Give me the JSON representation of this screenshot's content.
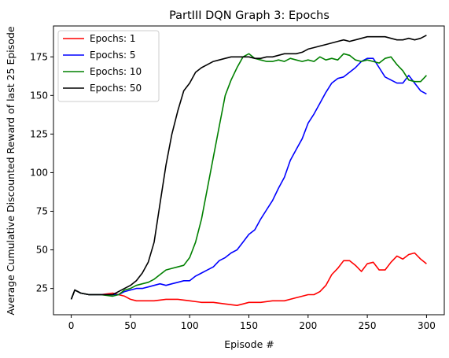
{
  "chart_data": {
    "type": "line",
    "title": "PartIII DQN Graph 3: Epochs",
    "xlabel": "Episode #",
    "ylabel": "Average Cumulative Discounted Reward of last 25 Episode",
    "xlim": [
      -15,
      315
    ],
    "ylim": [
      8,
      195
    ],
    "xticks": [
      0,
      50,
      100,
      150,
      200,
      250,
      300
    ],
    "yticks": [
      25,
      50,
      75,
      100,
      125,
      150,
      175
    ],
    "grid": false,
    "legend_position": "upper-left",
    "series": [
      {
        "name": "Epochs: 1",
        "color": "#ff0000",
        "x": [
          0,
          3,
          8,
          15,
          25,
          35,
          40,
          45,
          50,
          55,
          60,
          70,
          80,
          90,
          100,
          110,
          120,
          130,
          140,
          145,
          150,
          160,
          170,
          180,
          190,
          200,
          205,
          210,
          215,
          220,
          225,
          230,
          235,
          240,
          245,
          250,
          255,
          260,
          265,
          270,
          275,
          280,
          285,
          290,
          295,
          300
        ],
        "y": [
          18,
          24,
          22,
          21,
          21,
          22,
          21,
          20,
          18,
          17,
          17,
          17,
          18,
          18,
          17,
          16,
          16,
          15,
          14,
          15,
          16,
          16,
          17,
          17,
          19,
          21,
          21,
          23,
          27,
          34,
          38,
          43,
          43,
          40,
          36,
          41,
          42,
          37,
          37,
          42,
          46,
          44,
          47,
          48,
          44,
          41
        ]
      },
      {
        "name": "Epochs: 5",
        "color": "#0000ff",
        "x": [
          0,
          3,
          8,
          15,
          25,
          35,
          40,
          45,
          50,
          55,
          60,
          65,
          70,
          75,
          80,
          85,
          90,
          95,
          100,
          105,
          110,
          115,
          120,
          125,
          130,
          135,
          140,
          145,
          150,
          155,
          160,
          165,
          170,
          175,
          180,
          185,
          190,
          195,
          200,
          205,
          210,
          215,
          220,
          225,
          230,
          235,
          240,
          245,
          250,
          255,
          260,
          265,
          270,
          275,
          280,
          285,
          290,
          295,
          300
        ],
        "y": [
          18,
          24,
          22,
          21,
          21,
          21,
          21,
          23,
          24,
          25,
          25,
          26,
          27,
          28,
          27,
          28,
          29,
          30,
          30,
          33,
          35,
          37,
          39,
          43,
          45,
          48,
          50,
          55,
          60,
          63,
          70,
          76,
          82,
          90,
          97,
          108,
          115,
          122,
          132,
          138,
          145,
          152,
          158,
          161,
          162,
          165,
          168,
          172,
          174,
          174,
          168,
          162,
          160,
          158,
          158,
          163,
          158,
          153,
          151
        ]
      },
      {
        "name": "Epochs: 10",
        "color": "#008000",
        "x": [
          0,
          3,
          8,
          15,
          25,
          35,
          40,
          45,
          50,
          55,
          60,
          65,
          70,
          75,
          80,
          85,
          90,
          95,
          100,
          105,
          110,
          115,
          120,
          125,
          130,
          135,
          140,
          145,
          150,
          155,
          160,
          165,
          170,
          175,
          180,
          185,
          190,
          195,
          200,
          205,
          210,
          215,
          220,
          225,
          230,
          235,
          240,
          245,
          250,
          255,
          260,
          265,
          270,
          275,
          280,
          285,
          290,
          295,
          300
        ],
        "y": [
          18,
          24,
          22,
          21,
          21,
          20,
          21,
          24,
          25,
          27,
          28,
          29,
          31,
          34,
          37,
          38,
          39,
          40,
          45,
          55,
          70,
          90,
          110,
          130,
          150,
          160,
          168,
          175,
          177,
          174,
          173,
          172,
          172,
          173,
          172,
          174,
          173,
          172,
          173,
          172,
          175,
          173,
          174,
          173,
          177,
          176,
          173,
          172,
          173,
          172,
          171,
          174,
          175,
          170,
          166,
          160,
          159,
          159,
          163
        ]
      },
      {
        "name": "Epochs: 50",
        "color": "#000000",
        "x": [
          0,
          3,
          8,
          15,
          25,
          35,
          40,
          45,
          50,
          55,
          60,
          65,
          70,
          75,
          80,
          85,
          90,
          95,
          100,
          105,
          110,
          115,
          120,
          125,
          130,
          135,
          140,
          145,
          150,
          155,
          160,
          165,
          170,
          175,
          180,
          185,
          190,
          195,
          200,
          205,
          210,
          215,
          220,
          225,
          230,
          235,
          240,
          245,
          250,
          255,
          260,
          265,
          270,
          275,
          280,
          285,
          290,
          295,
          300
        ],
        "y": [
          18,
          24,
          22,
          21,
          21,
          21,
          23,
          25,
          27,
          30,
          35,
          42,
          55,
          80,
          105,
          125,
          140,
          153,
          158,
          165,
          168,
          170,
          172,
          173,
          174,
          175,
          175,
          175,
          175,
          174,
          174,
          175,
          175,
          176,
          177,
          177,
          177,
          178,
          180,
          181,
          182,
          183,
          184,
          185,
          186,
          185,
          186,
          187,
          188,
          188,
          188,
          188,
          187,
          186,
          186,
          187,
          186,
          187,
          189
        ]
      }
    ]
  }
}
